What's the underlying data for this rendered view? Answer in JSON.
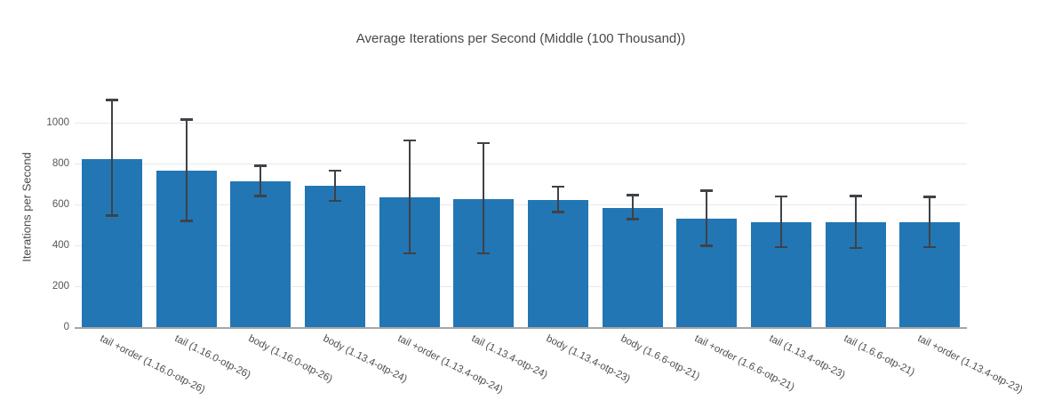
{
  "chart_data": {
    "type": "bar",
    "title": "Average Iterations per Second (Middle (100 Thousand))",
    "xlabel": "",
    "ylabel": "Iterations per Second",
    "categories": [
      "tail +order (1.16.0-otp-26)",
      "tail (1.16.0-otp-26)",
      "body (1.16.0-otp-26)",
      "body (1.13.4-otp-24)",
      "tail +order (1.13.4-otp-24)",
      "tail (1.13.4-otp-24)",
      "body (1.13.4-otp-23)",
      "body (1.6.6-otp-21)",
      "tail +order (1.6.6-otp-21)",
      "tail (1.13.4-otp-23)",
      "tail (1.6.6-otp-21)",
      "tail +order (1.13.4-otp-23)"
    ],
    "values": [
      822,
      766,
      713,
      690,
      636,
      627,
      622,
      585,
      531,
      515,
      514,
      515
    ],
    "error_high": [
      1110,
      1015,
      790,
      766,
      912,
      900,
      686,
      646,
      668,
      638,
      642,
      636
    ],
    "error_low": [
      545,
      520,
      640,
      618,
      360,
      360,
      563,
      528,
      397,
      390,
      387,
      390
    ],
    "yticks": [
      0,
      200,
      400,
      600,
      800,
      1000
    ],
    "ylim": [
      0,
      1210
    ],
    "grid": true,
    "legend_position": "none",
    "bar_color": "#2276b4",
    "error_color": "#3f4247",
    "background_color": "#ffffff",
    "gridline_color": "#e9e9e9",
    "axis_line_color": "#a6a6a6",
    "x_label_rotation_deg": 27
  }
}
